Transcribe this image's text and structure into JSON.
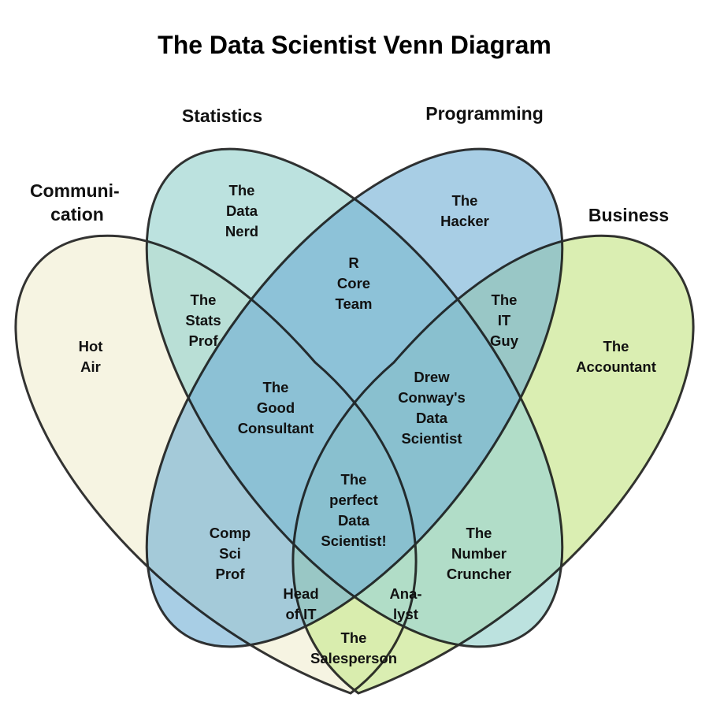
{
  "title": "The Data Scientist Venn Diagram",
  "sets": {
    "communication": {
      "lines": [
        "Communi-",
        "cation"
      ],
      "color": "#f6f4e2"
    },
    "statistics": {
      "lines": [
        "Statistics"
      ],
      "color": "#9fd6d2"
    },
    "programming": {
      "lines": [
        "Programming"
      ],
      "color": "#6eaed4"
    },
    "business": {
      "lines": [
        "Business"
      ],
      "color": "#d3eba4"
    }
  },
  "regions": [
    {
      "name": "data-nerd",
      "lines": [
        "The",
        "Data",
        "Nerd"
      ]
    },
    {
      "name": "hacker",
      "lines": [
        "The",
        "Hacker"
      ]
    },
    {
      "name": "r-core-team",
      "lines": [
        "R",
        "Core",
        "Team"
      ]
    },
    {
      "name": "stats-prof",
      "lines": [
        "The",
        "Stats",
        "Prof"
      ]
    },
    {
      "name": "it-guy",
      "lines": [
        "The",
        "IT",
        "Guy"
      ]
    },
    {
      "name": "hot-air",
      "lines": [
        "Hot",
        "Air"
      ]
    },
    {
      "name": "accountant",
      "lines": [
        "The",
        "Accountant"
      ]
    },
    {
      "name": "good-consultant",
      "lines": [
        "The",
        "Good",
        "Consultant"
      ]
    },
    {
      "name": "drew-conway-data-scientist",
      "lines": [
        "Drew",
        "Conway's",
        "Data",
        "Scientist"
      ]
    },
    {
      "name": "perfect-data-scientist",
      "lines": [
        "The",
        "perfect",
        "Data",
        "Scientist!"
      ]
    },
    {
      "name": "comp-sci-prof",
      "lines": [
        "Comp",
        "Sci",
        "Prof"
      ]
    },
    {
      "name": "number-cruncher",
      "lines": [
        "The",
        "Number",
        "Cruncher"
      ]
    },
    {
      "name": "head-of-it",
      "lines": [
        "Head",
        "of IT"
      ]
    },
    {
      "name": "analyst",
      "lines": [
        "Ana-",
        "lyst"
      ]
    },
    {
      "name": "salesperson",
      "lines": [
        "The",
        "Salesperson"
      ]
    }
  ]
}
